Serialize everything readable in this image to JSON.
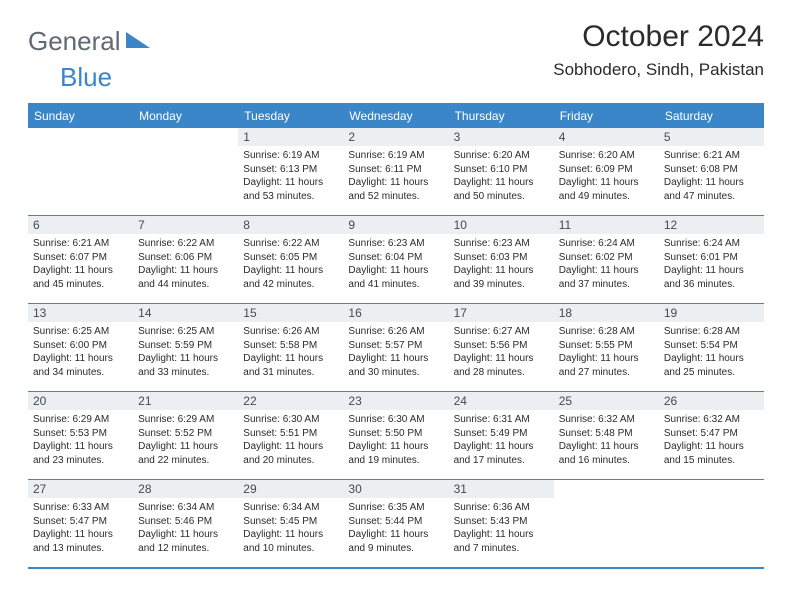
{
  "logo": {
    "word1": "General",
    "word2": "Blue",
    "brand_color": "#3a86c8",
    "gray": "#5f6a72"
  },
  "title": "October 2024",
  "subtitle": "Sobhodero, Sindh, Pakistan",
  "colors": {
    "header_bg": "#3a86c8",
    "header_text": "#ffffff",
    "daynum_bg": "#eceff1",
    "body_text": "#2b2b2b",
    "border": "#3a86c8",
    "page_bg": "#ffffff"
  },
  "day_headers": [
    "Sunday",
    "Monday",
    "Tuesday",
    "Wednesday",
    "Thursday",
    "Friday",
    "Saturday"
  ],
  "weeks": [
    [
      {
        "n": "",
        "sr": "",
        "ss": "",
        "dl": ""
      },
      {
        "n": "",
        "sr": "",
        "ss": "",
        "dl": ""
      },
      {
        "n": "1",
        "sr": "Sunrise: 6:19 AM",
        "ss": "Sunset: 6:13 PM",
        "dl": "Daylight: 11 hours and 53 minutes."
      },
      {
        "n": "2",
        "sr": "Sunrise: 6:19 AM",
        "ss": "Sunset: 6:11 PM",
        "dl": "Daylight: 11 hours and 52 minutes."
      },
      {
        "n": "3",
        "sr": "Sunrise: 6:20 AM",
        "ss": "Sunset: 6:10 PM",
        "dl": "Daylight: 11 hours and 50 minutes."
      },
      {
        "n": "4",
        "sr": "Sunrise: 6:20 AM",
        "ss": "Sunset: 6:09 PM",
        "dl": "Daylight: 11 hours and 49 minutes."
      },
      {
        "n": "5",
        "sr": "Sunrise: 6:21 AM",
        "ss": "Sunset: 6:08 PM",
        "dl": "Daylight: 11 hours and 47 minutes."
      }
    ],
    [
      {
        "n": "6",
        "sr": "Sunrise: 6:21 AM",
        "ss": "Sunset: 6:07 PM",
        "dl": "Daylight: 11 hours and 45 minutes."
      },
      {
        "n": "7",
        "sr": "Sunrise: 6:22 AM",
        "ss": "Sunset: 6:06 PM",
        "dl": "Daylight: 11 hours and 44 minutes."
      },
      {
        "n": "8",
        "sr": "Sunrise: 6:22 AM",
        "ss": "Sunset: 6:05 PM",
        "dl": "Daylight: 11 hours and 42 minutes."
      },
      {
        "n": "9",
        "sr": "Sunrise: 6:23 AM",
        "ss": "Sunset: 6:04 PM",
        "dl": "Daylight: 11 hours and 41 minutes."
      },
      {
        "n": "10",
        "sr": "Sunrise: 6:23 AM",
        "ss": "Sunset: 6:03 PM",
        "dl": "Daylight: 11 hours and 39 minutes."
      },
      {
        "n": "11",
        "sr": "Sunrise: 6:24 AM",
        "ss": "Sunset: 6:02 PM",
        "dl": "Daylight: 11 hours and 37 minutes."
      },
      {
        "n": "12",
        "sr": "Sunrise: 6:24 AM",
        "ss": "Sunset: 6:01 PM",
        "dl": "Daylight: 11 hours and 36 minutes."
      }
    ],
    [
      {
        "n": "13",
        "sr": "Sunrise: 6:25 AM",
        "ss": "Sunset: 6:00 PM",
        "dl": "Daylight: 11 hours and 34 minutes."
      },
      {
        "n": "14",
        "sr": "Sunrise: 6:25 AM",
        "ss": "Sunset: 5:59 PM",
        "dl": "Daylight: 11 hours and 33 minutes."
      },
      {
        "n": "15",
        "sr": "Sunrise: 6:26 AM",
        "ss": "Sunset: 5:58 PM",
        "dl": "Daylight: 11 hours and 31 minutes."
      },
      {
        "n": "16",
        "sr": "Sunrise: 6:26 AM",
        "ss": "Sunset: 5:57 PM",
        "dl": "Daylight: 11 hours and 30 minutes."
      },
      {
        "n": "17",
        "sr": "Sunrise: 6:27 AM",
        "ss": "Sunset: 5:56 PM",
        "dl": "Daylight: 11 hours and 28 minutes."
      },
      {
        "n": "18",
        "sr": "Sunrise: 6:28 AM",
        "ss": "Sunset: 5:55 PM",
        "dl": "Daylight: 11 hours and 27 minutes."
      },
      {
        "n": "19",
        "sr": "Sunrise: 6:28 AM",
        "ss": "Sunset: 5:54 PM",
        "dl": "Daylight: 11 hours and 25 minutes."
      }
    ],
    [
      {
        "n": "20",
        "sr": "Sunrise: 6:29 AM",
        "ss": "Sunset: 5:53 PM",
        "dl": "Daylight: 11 hours and 23 minutes."
      },
      {
        "n": "21",
        "sr": "Sunrise: 6:29 AM",
        "ss": "Sunset: 5:52 PM",
        "dl": "Daylight: 11 hours and 22 minutes."
      },
      {
        "n": "22",
        "sr": "Sunrise: 6:30 AM",
        "ss": "Sunset: 5:51 PM",
        "dl": "Daylight: 11 hours and 20 minutes."
      },
      {
        "n": "23",
        "sr": "Sunrise: 6:30 AM",
        "ss": "Sunset: 5:50 PM",
        "dl": "Daylight: 11 hours and 19 minutes."
      },
      {
        "n": "24",
        "sr": "Sunrise: 6:31 AM",
        "ss": "Sunset: 5:49 PM",
        "dl": "Daylight: 11 hours and 17 minutes."
      },
      {
        "n": "25",
        "sr": "Sunrise: 6:32 AM",
        "ss": "Sunset: 5:48 PM",
        "dl": "Daylight: 11 hours and 16 minutes."
      },
      {
        "n": "26",
        "sr": "Sunrise: 6:32 AM",
        "ss": "Sunset: 5:47 PM",
        "dl": "Daylight: 11 hours and 15 minutes."
      }
    ],
    [
      {
        "n": "27",
        "sr": "Sunrise: 6:33 AM",
        "ss": "Sunset: 5:47 PM",
        "dl": "Daylight: 11 hours and 13 minutes."
      },
      {
        "n": "28",
        "sr": "Sunrise: 6:34 AM",
        "ss": "Sunset: 5:46 PM",
        "dl": "Daylight: 11 hours and 12 minutes."
      },
      {
        "n": "29",
        "sr": "Sunrise: 6:34 AM",
        "ss": "Sunset: 5:45 PM",
        "dl": "Daylight: 11 hours and 10 minutes."
      },
      {
        "n": "30",
        "sr": "Sunrise: 6:35 AM",
        "ss": "Sunset: 5:44 PM",
        "dl": "Daylight: 11 hours and 9 minutes."
      },
      {
        "n": "31",
        "sr": "Sunrise: 6:36 AM",
        "ss": "Sunset: 5:43 PM",
        "dl": "Daylight: 11 hours and 7 minutes."
      },
      {
        "n": "",
        "sr": "",
        "ss": "",
        "dl": ""
      },
      {
        "n": "",
        "sr": "",
        "ss": "",
        "dl": ""
      }
    ]
  ]
}
